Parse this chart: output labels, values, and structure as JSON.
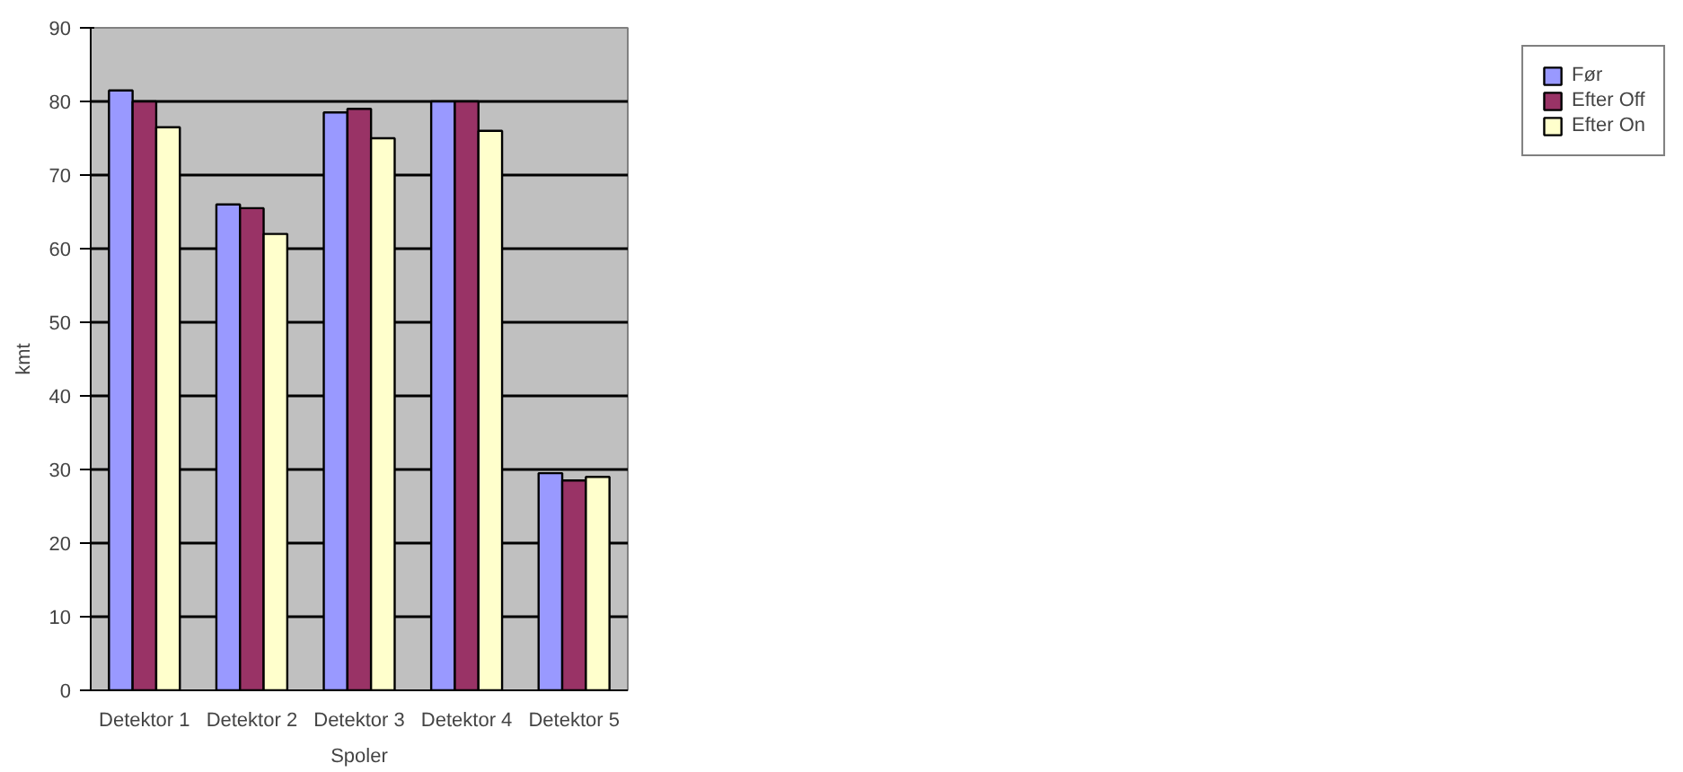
{
  "chart_data": {
    "type": "bar",
    "xlabel": "Spoler",
    "ylabel": "kmt",
    "categories": [
      "Detektor 1",
      "Detektor 2",
      "Detektor 3",
      "Detektor 4",
      "Detektor 5"
    ],
    "series": [
      {
        "name": "Før",
        "color": "#9999ff",
        "values": [
          81.5,
          66,
          78.5,
          80,
          29.5
        ]
      },
      {
        "name": "Efter Off",
        "color": "#993366",
        "values": [
          80,
          65.5,
          79,
          80,
          28.5
        ]
      },
      {
        "name": "Efter On",
        "color": "#ffffcc",
        "values": [
          76.5,
          62,
          75,
          76,
          29
        ]
      }
    ],
    "ylim": [
      0,
      90
    ],
    "yticks": [
      0,
      10,
      20,
      30,
      40,
      50,
      60,
      70,
      80,
      90
    ],
    "grid": "y",
    "legend": "right"
  }
}
